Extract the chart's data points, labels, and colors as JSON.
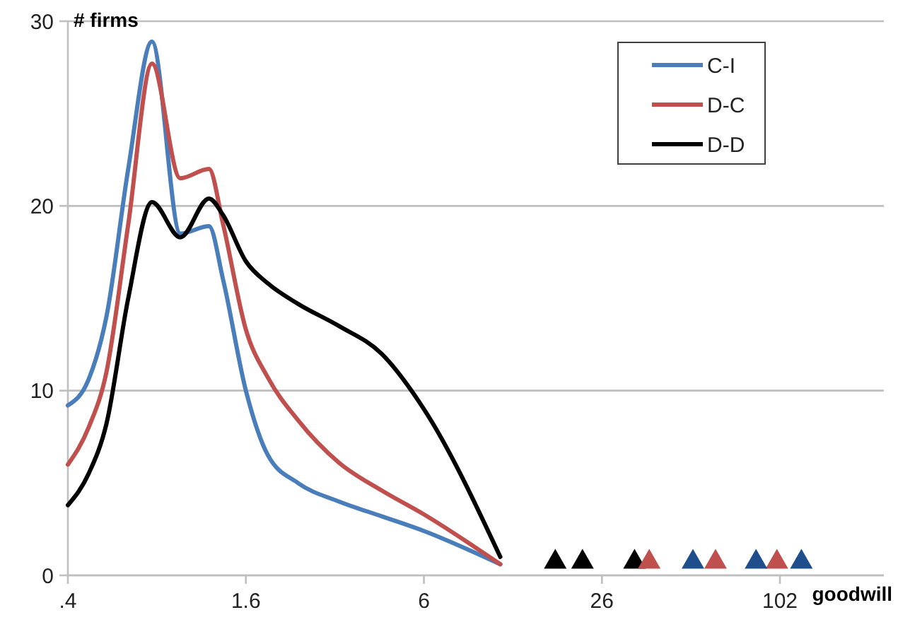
{
  "chart_data": {
    "type": "line",
    "xlabel": "goodwill",
    "ylabel": "# firms",
    "log": "x",
    "xlim": [
      0.4,
      230
    ],
    "xticks": [
      {
        "value": 0.4,
        "label": ".4"
      },
      1.6,
      {
        "value": 6.4,
        "label": "6"
      },
      {
        "value": 25.6,
        "label": "26"
      },
      {
        "value": 102.4,
        "label": "102"
      }
    ],
    "ylim": [
      0,
      30
    ],
    "yticks": [
      0,
      10,
      20,
      30
    ],
    "grid": "y",
    "legend": "top right",
    "line_style": "solid",
    "marker": "none",
    "x": [
      0.4,
      0.47,
      0.54,
      0.64,
      0.77,
      0.96,
      1.2,
      1.34,
      1.6,
      1.9,
      2.4,
      3.3,
      4.6,
      6.4,
      11.6
    ],
    "series": [
      {
        "name": "C-I",
        "color": "#4a7ebb",
        "values": [
          9.2,
          10.6,
          14,
          22,
          28.9,
          18.5,
          18.9,
          16,
          10,
          6.5,
          5,
          4,
          3.2,
          2.4,
          0.6
        ]
      },
      {
        "name": "D-C",
        "color": "#c0504d",
        "values": [
          6,
          8,
          11,
          19,
          27.7,
          21.5,
          22,
          19,
          13.3,
          10.7,
          8.4,
          6.1,
          4.6,
          3.3,
          0.6
        ]
      },
      {
        "name": "D-D",
        "color": "#000000",
        "values": [
          3.8,
          5.5,
          8.2,
          15,
          20.2,
          18.3,
          20.4,
          19.5,
          17,
          15.8,
          14.7,
          13.5,
          12,
          9,
          1
        ]
      },
      {
        "type": "scatter",
        "marker": "triangle",
        "color": "#000000",
        "x": [
          17.8,
          22,
          33
        ],
        "values": [
          0.9,
          0.9,
          0.9
        ]
      },
      {
        "type": "scatter",
        "marker": "triangle",
        "color": "#c0504d",
        "x": [
          37,
          62,
          100
        ],
        "values": [
          0.9,
          0.9,
          0.9
        ]
      },
      {
        "type": "scatter",
        "marker": "triangle",
        "color": "#1f4e8c",
        "x": [
          52,
          85,
          121
        ],
        "values": [
          0.9,
          0.9,
          0.9
        ]
      }
    ]
  }
}
